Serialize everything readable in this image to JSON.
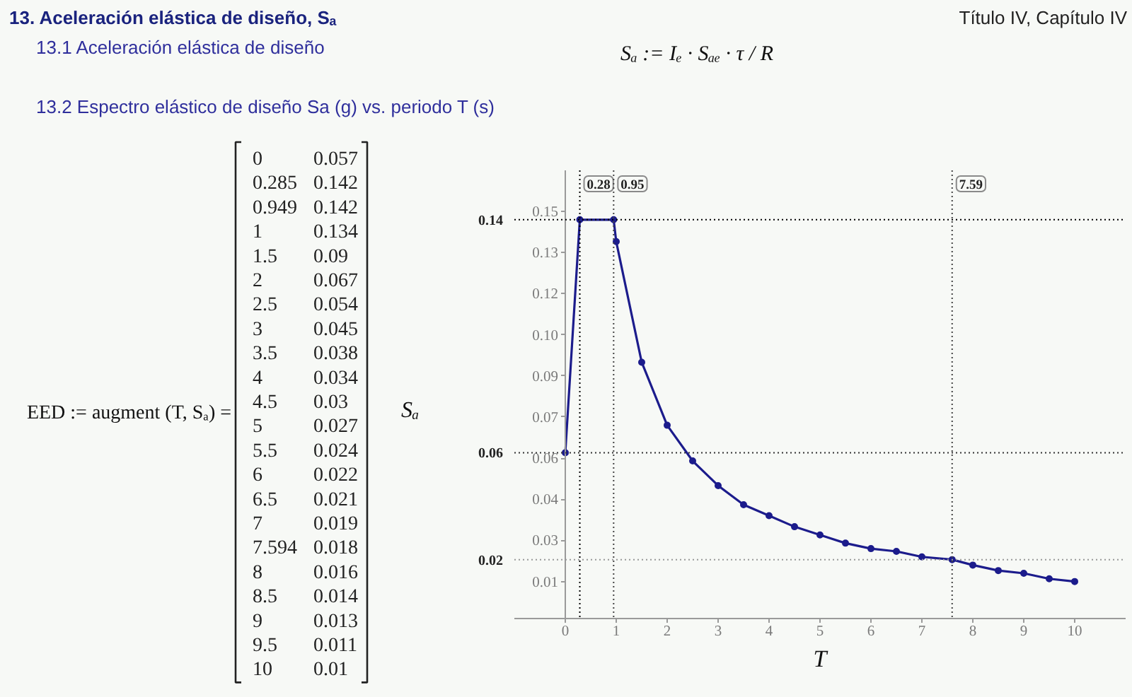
{
  "chart_data": {
    "type": "line",
    "title": "13. Aceleración elástica de diseño, Sₐ",
    "subtitle": "13.2 Espectro elástico de diseño Sa (g) vs. periodo T (s)",
    "xlabel": "T",
    "ylabel": "Sₐ",
    "annotations": [
      "Título IV, Capítulo IV",
      "13.1 Aceleración elástica de diseño",
      "Sₐ := Iₑ · Sₐₑ · τ / R",
      "EED := augment (T, Sₐ) =",
      "0",
      "0.057",
      "0.285",
      "0.142",
      "0.949",
      "0.142",
      "1",
      "0.134",
      "1.5",
      "0.09",
      "2",
      "0.067",
      "2.5",
      "0.054",
      "3",
      "0.045",
      "3.5",
      "0.038",
      "4",
      "0.034",
      "4.5",
      "0.03",
      "5",
      "0.027",
      "5.5",
      "0.024",
      "6",
      "0.022",
      "6.5",
      "0.021",
      "7",
      "0.019",
      "7.594",
      "0.018",
      "8",
      "0.016",
      "8.5",
      "0.014",
      "9",
      "0.013",
      "9.5",
      "0.011",
      "10",
      "0.01"
    ],
    "x": [
      0,
      0.285,
      0.949,
      1,
      1.5,
      2,
      2.5,
      3,
      3.5,
      4,
      4.5,
      5,
      5.5,
      6,
      6.5,
      7,
      7.594,
      8,
      8.5,
      9,
      9.5,
      10
    ],
    "series": [
      {
        "color": "#1c1c8c",
        "values": [
          0.057,
          0.142,
          0.142,
          0.134,
          0.09,
          0.067,
          0.054,
          0.045,
          0.038,
          0.034,
          0.03,
          0.027,
          0.024,
          0.022,
          0.021,
          0.019,
          0.018,
          0.016,
          0.014,
          0.013,
          0.011,
          0.01
        ]
      }
    ],
    "xlim": [
      -1,
      11
    ],
    "ylim": [
      -0.0035,
      0.16
    ],
    "xticks": [
      0,
      1,
      2,
      3,
      4,
      5,
      6,
      7,
      8,
      9,
      10
    ],
    "yticks": [
      0.01,
      {
        "value": 0.025,
        "label": "0.03"
      },
      0.04,
      {
        "value": 0.055,
        "label": "0.06"
      },
      0.07,
      {
        "value": 0.085,
        "label": "0.09"
      },
      {
        "value": 0.1,
        "label": "0.10"
      },
      {
        "value": 0.115,
        "label": "0.12"
      },
      0.13,
      {
        "value": 0.145,
        "label": "0.15"
      }
    ],
    "ref_lines": [
      {
        "axis": "x",
        "value": 0.285,
        "label": "0.28",
        "color": "#000000",
        "line_style": "dotted"
      },
      {
        "axis": "x",
        "value": 0.949,
        "label": "0.95",
        "color": "#444444",
        "line_style": "dotted"
      },
      {
        "axis": "x",
        "value": 7.594,
        "label": "7.59",
        "color": "#444444",
        "line_style": "dotted"
      },
      {
        "axis": "y",
        "value": 0.142,
        "label": "0.14",
        "color": "#000000",
        "line_style": "dotted"
      },
      {
        "axis": "y",
        "value": 0.057,
        "label": "0.06",
        "color": "#333333",
        "line_style": "dotted"
      },
      {
        "axis": "y",
        "value": 0.018,
        "label": "0.02",
        "color": "#999999",
        "line_style": "dotted"
      }
    ],
    "grid": false,
    "marker": "circle",
    "line_style": "solid"
  }
}
